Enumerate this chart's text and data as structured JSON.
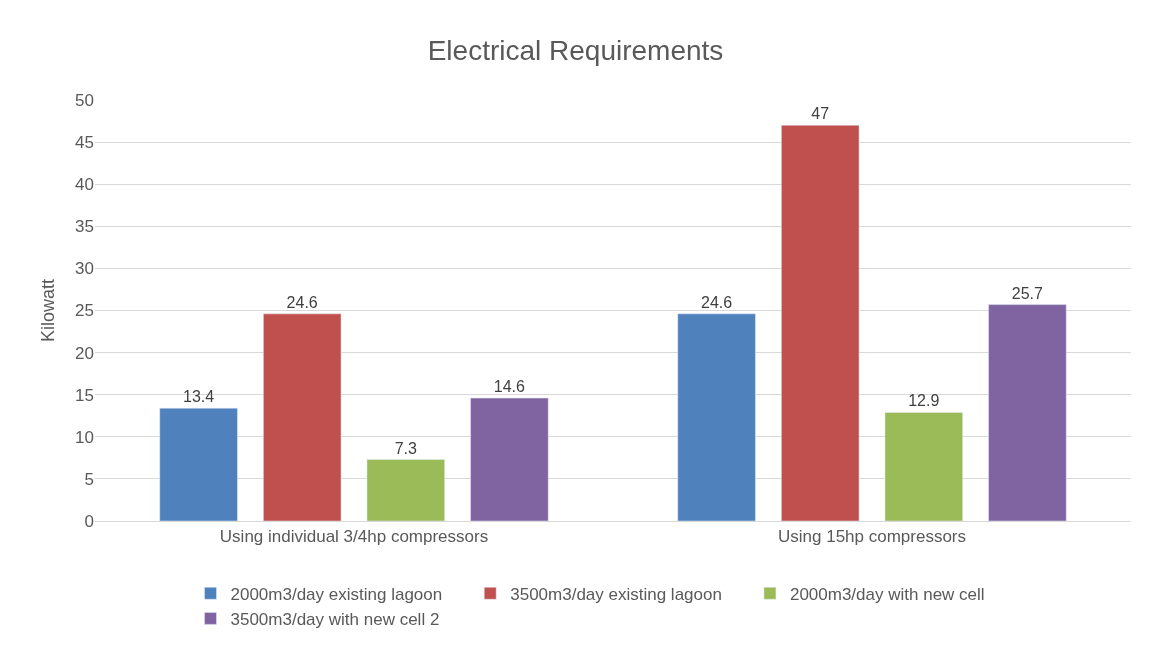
{
  "chart_data": {
    "type": "bar",
    "title": "Electrical Requirements",
    "ylabel": "Kilowatt",
    "categories": [
      "Using individual 3/4hp compressors",
      "Using 15hp compressors"
    ],
    "series": [
      {
        "name": "2000m3/day existing lagoon",
        "color": "#4f81bd",
        "values": [
          13.4,
          24.6
        ]
      },
      {
        "name": "3500m3/day existing lagoon",
        "color": "#c0504d",
        "values": [
          24.6,
          47
        ]
      },
      {
        "name": "2000m3/day with new cell",
        "color": "#9bbb59",
        "values": [
          7.3,
          12.9
        ]
      },
      {
        "name": "3500m3/day with new cell 2",
        "color": "#8064a2",
        "values": [
          14.6,
          25.7
        ]
      }
    ],
    "ylim": [
      0,
      50
    ],
    "yticks": [
      0,
      5,
      10,
      15,
      20,
      25,
      30,
      35,
      40,
      45,
      50
    ],
    "grid": "y",
    "legend": "bottom",
    "data_labels": true
  }
}
